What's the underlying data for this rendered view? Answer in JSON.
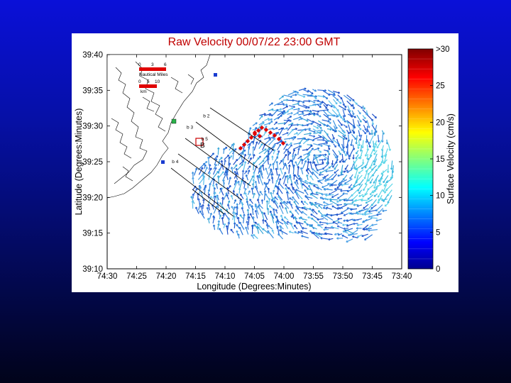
{
  "chart_data": {
    "type": "vector-field-map",
    "title": "Raw Velocity 00/07/22 23:00 GMT",
    "xlabel": "Longitude (Degrees:Minutes)",
    "ylabel": "Latitude (Degrees:Minutes)",
    "x_ticks": [
      "74:30",
      "74:25",
      "74:20",
      "74:15",
      "74:10",
      "74:05",
      "74:00",
      "73:55",
      "73:50",
      "73:45",
      "73:40"
    ],
    "y_ticks": [
      "39:40",
      "39:35",
      "39:30",
      "39:25",
      "39:20",
      "39:15",
      "39:10"
    ],
    "xlim_minutes_west": [
      30,
      -20
    ],
    "ylim_minutes": [
      10,
      40
    ],
    "colorbar": {
      "label": "Surface Velocity (cm/s)",
      "ticks": [
        ">30",
        "25",
        "20",
        "15",
        "10",
        "5",
        "0"
      ],
      "range": [
        0,
        30
      ],
      "colormap": "jet"
    },
    "scale_bars": [
      "Nautical Miles",
      "km"
    ],
    "scale_ticks": [
      "0",
      "3",
      "6",
      "0",
      "5",
      "10"
    ],
    "sites": [
      {
        "label": "b 2",
        "lon_w": 13.7,
        "lat": 31.2
      },
      {
        "label": "b 3",
        "lon_w": 16.5,
        "lat": 29.6
      },
      {
        "label": "b 4",
        "lon_w": 19.0,
        "lat": 24.8
      },
      {
        "label": "b 5",
        "lon_w": 14.0,
        "lat": 28.0
      }
    ],
    "marker_label": "B",
    "grid": false
  }
}
